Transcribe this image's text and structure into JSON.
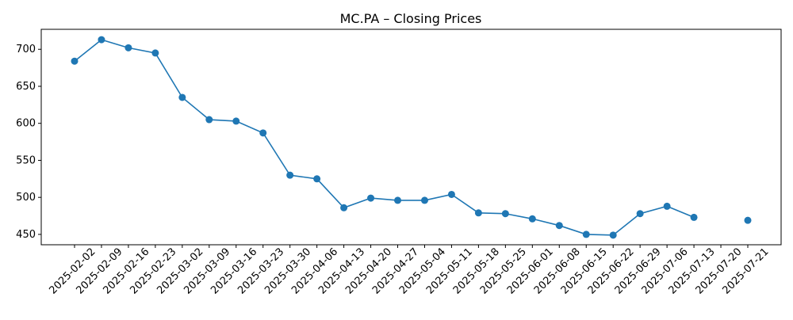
{
  "chart_data": {
    "type": "line",
    "title": "MC.PA – Closing Prices",
    "xlabel": "",
    "ylabel": "",
    "categories": [
      "2025-02-02",
      "2025-02-09",
      "2025-02-16",
      "2025-02-23",
      "2025-03-02",
      "2025-03-09",
      "2025-03-16",
      "2025-03-23",
      "2025-03-30",
      "2025-04-06",
      "2025-04-13",
      "2025-04-20",
      "2025-04-27",
      "2025-05-04",
      "2025-05-11",
      "2025-05-18",
      "2025-05-25",
      "2025-06-01",
      "2025-06-08",
      "2025-06-15",
      "2025-06-22",
      "2025-06-29",
      "2025-07-06",
      "2025-07-13",
      "2025-07-20",
      "2025-07-21"
    ],
    "series": [
      {
        "name": "Close",
        "color": "#1f77b4",
        "values": [
          684,
          713,
          702,
          695,
          635,
          605,
          603,
          587,
          530,
          525,
          486,
          499,
          496,
          496,
          504,
          479,
          478,
          471,
          462,
          450,
          449,
          478,
          488,
          473,
          null,
          469
        ]
      }
    ],
    "yticks": [
      450,
      500,
      550,
      600,
      650,
      700
    ],
    "ylim": [
      436,
      727
    ],
    "grid": false
  }
}
